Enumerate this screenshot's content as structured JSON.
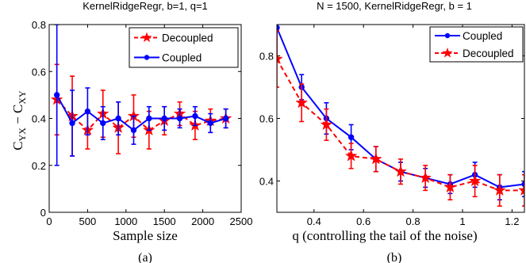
{
  "colors": {
    "decoupled": "#ff0000",
    "coupled": "#0000ff"
  },
  "chart_data": [
    {
      "type": "line",
      "title": "KernelRidgeRegr, b=1, q=1",
      "caption": "(a)",
      "xlabel": "Sample size",
      "ylabel_main": "C",
      "ylabel_sub1": "YX",
      "ylabel_mid": " − C",
      "ylabel_sub2": "XY",
      "xlim": [
        0,
        2500
      ],
      "ylim": [
        0,
        0.8
      ],
      "xticks": [
        0,
        500,
        1000,
        1500,
        2000,
        2500
      ],
      "yticks": [
        0,
        0.2,
        0.4,
        0.6,
        0.8
      ],
      "xtick_labels": [
        "0",
        "500",
        "1000",
        "1500",
        "2000",
        "2500"
      ],
      "ytick_labels": [
        "0",
        "0.2",
        "0.4",
        "0.6",
        "0.8"
      ],
      "legend": "top-right",
      "grid": false,
      "series": [
        {
          "name": "Decoupled",
          "key": "decoupled",
          "marker": "star",
          "dash": true,
          "x": [
            100,
            300,
            500,
            700,
            900,
            1100,
            1300,
            1500,
            1700,
            1900,
            2100,
            2300
          ],
          "y": [
            0.48,
            0.41,
            0.35,
            0.42,
            0.36,
            0.41,
            0.35,
            0.39,
            0.42,
            0.37,
            0.39,
            0.4
          ],
          "err": [
            0.15,
            0.17,
            0.08,
            0.1,
            0.11,
            0.09,
            0.08,
            0.06,
            0.05,
            0.06,
            0.05,
            0.04
          ]
        },
        {
          "name": "Coupled",
          "key": "coupled",
          "marker": "dot",
          "dash": false,
          "x": [
            100,
            300,
            500,
            700,
            900,
            1100,
            1300,
            1500,
            1700,
            1900,
            2100,
            2300
          ],
          "y": [
            0.5,
            0.38,
            0.43,
            0.38,
            0.4,
            0.35,
            0.4,
            0.4,
            0.4,
            0.41,
            0.38,
            0.4
          ],
          "err": [
            0.3,
            0.14,
            0.1,
            0.07,
            0.07,
            0.06,
            0.05,
            0.05,
            0.04,
            0.04,
            0.04,
            0.04
          ]
        }
      ]
    },
    {
      "type": "line",
      "title": "N = 1500, KernelRidgeRegr, b = 1",
      "caption": "(b)",
      "xlabel": "q (controlling the tail of the noise)",
      "xlim": [
        0.25,
        1.25
      ],
      "ylim": [
        0.3,
        0.9
      ],
      "xticks": [
        0.4,
        0.6,
        0.8,
        1.0,
        1.2
      ],
      "yticks": [
        0.4,
        0.6,
        0.8
      ],
      "xtick_labels": [
        "0.4",
        "0.6",
        "0.8",
        "1",
        "1.2"
      ],
      "ytick_labels": [
        "0.4",
        "0.6",
        "0.8"
      ],
      "legend": "top-right",
      "grid": false,
      "series": [
        {
          "name": "Coupled",
          "key": "coupled",
          "marker": "dot",
          "dash": false,
          "x": [
            0.25,
            0.35,
            0.45,
            0.55,
            0.65,
            0.75,
            0.85,
            0.95,
            1.05,
            1.15,
            1.25
          ],
          "y": [
            0.89,
            0.7,
            0.6,
            0.54,
            0.47,
            0.43,
            0.41,
            0.39,
            0.42,
            0.38,
            0.39
          ],
          "err": [
            0.1,
            0.04,
            0.05,
            0.04,
            0.04,
            0.03,
            0.03,
            0.03,
            0.04,
            0.04,
            0.04
          ]
        },
        {
          "name": "Decoupled",
          "key": "decoupled",
          "marker": "star",
          "dash": true,
          "x": [
            0.25,
            0.35,
            0.45,
            0.55,
            0.65,
            0.75,
            0.85,
            0.95,
            1.05,
            1.15,
            1.25
          ],
          "y": [
            0.79,
            0.65,
            0.58,
            0.48,
            0.47,
            0.43,
            0.41,
            0.38,
            0.4,
            0.37,
            0.37
          ],
          "err": [
            0.09,
            0.06,
            0.05,
            0.04,
            0.04,
            0.04,
            0.04,
            0.04,
            0.05,
            0.05,
            0.05
          ]
        }
      ]
    }
  ]
}
